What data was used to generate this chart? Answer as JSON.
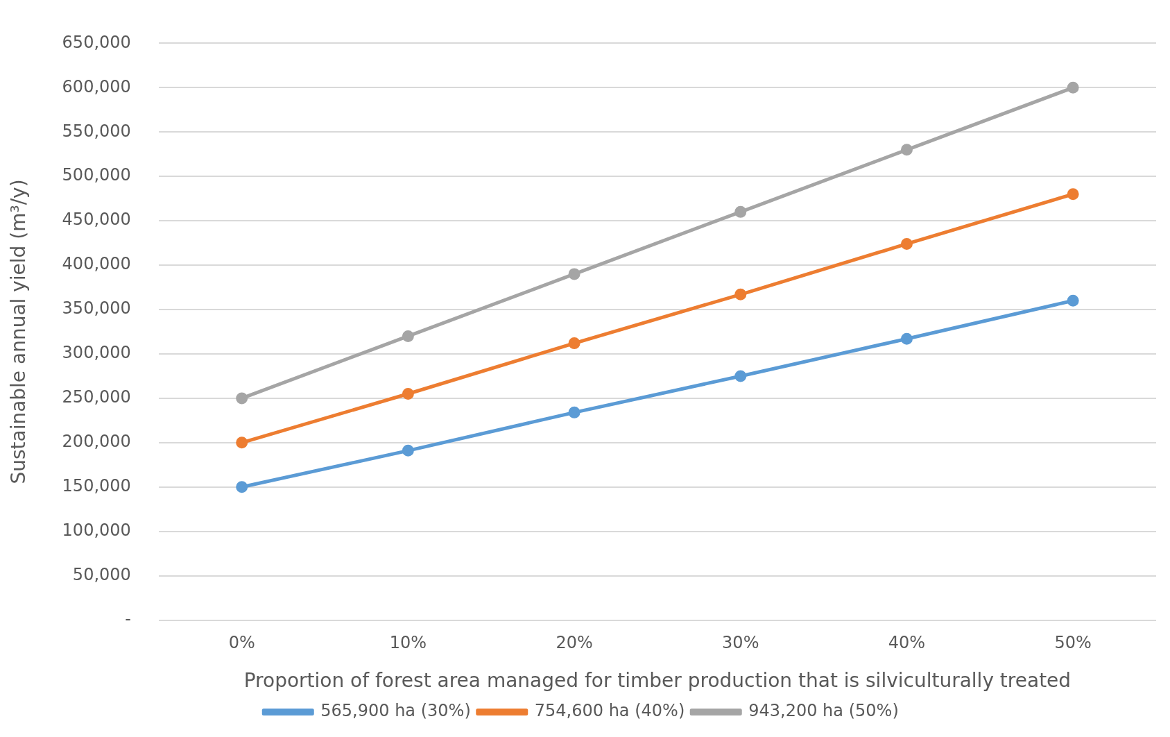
{
  "chart_data": {
    "type": "line",
    "xlabel": "Proportion of forest area managed for timber production that is silviculturally treated",
    "ylabel": "Sustainable annual yield (m³/y)",
    "categories": [
      "0%",
      "10%",
      "20%",
      "30%",
      "40%",
      "50%"
    ],
    "series": [
      {
        "name": "565,900 ha (30%)",
        "color": "#5b9bd5",
        "values": [
          150000,
          191000,
          234000,
          275000,
          317000,
          360000
        ]
      },
      {
        "name": "754,600 ha (40%)",
        "color": "#ed7d31",
        "values": [
          200000,
          255000,
          312000,
          367000,
          424000,
          480000
        ]
      },
      {
        "name": "943,200 ha (50%)",
        "color": "#a5a5a5",
        "values": [
          250000,
          320000,
          390000,
          460000,
          530000,
          600000
        ]
      }
    ],
    "ylim": [
      0,
      650000
    ],
    "yticks": [
      {
        "value": 0,
        "label": "-"
      },
      {
        "value": 50000,
        "label": "50,000"
      },
      {
        "value": 100000,
        "label": "100,000"
      },
      {
        "value": 150000,
        "label": "150,000"
      },
      {
        "value": 200000,
        "label": "200,000"
      },
      {
        "value": 250000,
        "label": "250,000"
      },
      {
        "value": 300000,
        "label": "300,000"
      },
      {
        "value": 350000,
        "label": "350,000"
      },
      {
        "value": 400000,
        "label": "400,000"
      },
      {
        "value": 450000,
        "label": "450,000"
      },
      {
        "value": 500000,
        "label": "500,000"
      },
      {
        "value": 550000,
        "label": "550,000"
      },
      {
        "value": 600000,
        "label": "600,000"
      },
      {
        "value": 650000,
        "label": "650,000"
      }
    ],
    "grid": "y",
    "legend": "bottom",
    "marker": "circle",
    "line_style": "solid"
  }
}
